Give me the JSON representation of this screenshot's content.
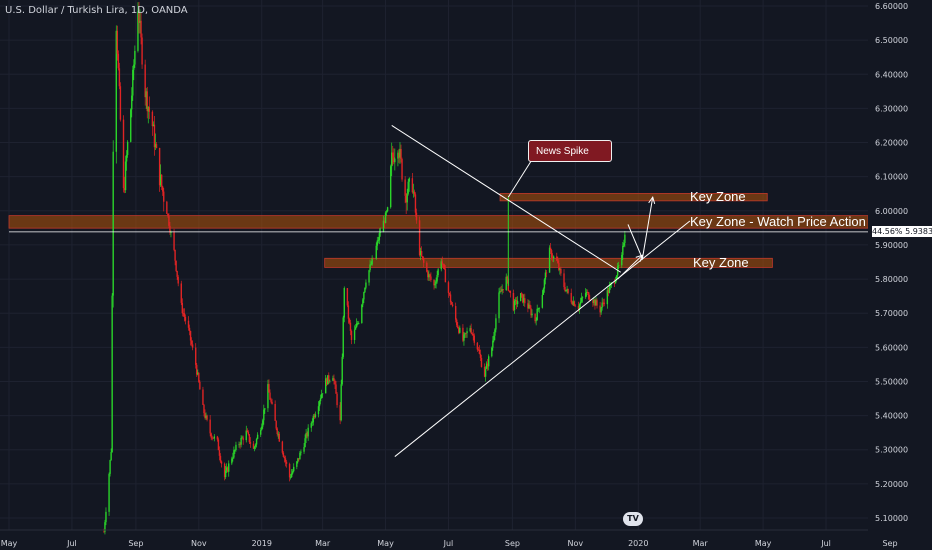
{
  "symbol_title": "U.S. Dollar / Turkish Lira, 1D, OANDA",
  "price_tag": {
    "left": "44.56%",
    "right": "5.93830"
  },
  "annotations": {
    "news_spike": "News Spike",
    "key_zone_upper": "Key Zone",
    "key_zone_middle": "Key Zone - Watch Price Action",
    "key_zone_lower": "Key Zone"
  },
  "colors": {
    "background": "#131722",
    "up": "#26a69a",
    "up_bright": "#2ad52a",
    "down": "#e02424",
    "zone": "#b45309",
    "line": "#ffffff"
  },
  "logo_text": "TV",
  "chart_data": {
    "type": "candlestick",
    "title": "U.S. Dollar / Turkish Lira, 1D, OANDA",
    "x_tick_labels": [
      "May",
      "Jul",
      "Sep",
      "Nov",
      "2019",
      "Mar",
      "May",
      "Jul",
      "Sep",
      "Nov",
      "2020",
      "Mar",
      "May",
      "Jul",
      "Sep"
    ],
    "y_tick_labels": [
      "6.60000",
      "6.50000",
      "6.40000",
      "6.30000",
      "6.20000",
      "6.10000",
      "6.00000",
      "5.90000",
      "5.80000",
      "5.70000",
      "5.60000",
      "5.50000",
      "5.40000",
      "5.30000",
      "5.20000",
      "5.10000"
    ],
    "ylim": [
      5.08,
      6.62
    ],
    "x_range": [
      "2018-05-01",
      "2020-09-15"
    ],
    "current_price": 5.9383,
    "price_path": [
      [
        "2018-08-01",
        5.06
      ],
      [
        "2018-08-08",
        5.3
      ],
      [
        "2018-08-10",
        6.2
      ],
      [
        "2018-08-13",
        6.55
      ],
      [
        "2018-08-20",
        6.05
      ],
      [
        "2018-08-27",
        6.3
      ],
      [
        "2018-09-03",
        6.6
      ],
      [
        "2018-09-10",
        6.35
      ],
      [
        "2018-09-17",
        6.25
      ],
      [
        "2018-09-24",
        6.1
      ],
      [
        "2018-10-01",
        6.0
      ],
      [
        "2018-10-08",
        5.88
      ],
      [
        "2018-10-15",
        5.72
      ],
      [
        "2018-10-22",
        5.65
      ],
      [
        "2018-10-29",
        5.55
      ],
      [
        "2018-11-05",
        5.42
      ],
      [
        "2018-11-12",
        5.35
      ],
      [
        "2018-11-19",
        5.32
      ],
      [
        "2018-11-26",
        5.22
      ],
      [
        "2018-12-03",
        5.28
      ],
      [
        "2018-12-10",
        5.32
      ],
      [
        "2018-12-17",
        5.35
      ],
      [
        "2018-12-24",
        5.3
      ],
      [
        "2019-01-01",
        5.38
      ],
      [
        "2019-01-07",
        5.48
      ],
      [
        "2019-01-14",
        5.38
      ],
      [
        "2019-01-21",
        5.3
      ],
      [
        "2019-01-28",
        5.22
      ],
      [
        "2019-02-04",
        5.26
      ],
      [
        "2019-02-11",
        5.32
      ],
      [
        "2019-02-18",
        5.38
      ],
      [
        "2019-02-25",
        5.44
      ],
      [
        "2019-03-04",
        5.5
      ],
      [
        "2019-03-11",
        5.52
      ],
      [
        "2019-03-18",
        5.38
      ],
      [
        "2019-03-22",
        5.78
      ],
      [
        "2019-03-29",
        5.62
      ],
      [
        "2019-04-05",
        5.68
      ],
      [
        "2019-04-12",
        5.8
      ],
      [
        "2019-04-19",
        5.86
      ],
      [
        "2019-04-26",
        5.94
      ],
      [
        "2019-05-03",
        6.0
      ],
      [
        "2019-05-07",
        6.15
      ],
      [
        "2019-05-13",
        6.2
      ],
      [
        "2019-05-20",
        6.05
      ],
      [
        "2019-05-27",
        6.08
      ],
      [
        "2019-06-03",
        5.88
      ],
      [
        "2019-06-10",
        5.82
      ],
      [
        "2019-06-17",
        5.78
      ],
      [
        "2019-06-24",
        5.86
      ],
      [
        "2019-07-01",
        5.76
      ],
      [
        "2019-07-08",
        5.68
      ],
      [
        "2019-07-15",
        5.62
      ],
      [
        "2019-07-22",
        5.66
      ],
      [
        "2019-07-29",
        5.6
      ],
      [
        "2019-08-05",
        5.52
      ],
      [
        "2019-08-12",
        5.6
      ],
      [
        "2019-08-19",
        5.75
      ],
      [
        "2019-08-26",
        5.8
      ],
      [
        "2019-09-02",
        5.72
      ],
      [
        "2019-09-09",
        5.75
      ],
      [
        "2019-09-16",
        5.72
      ],
      [
        "2019-09-23",
        5.68
      ],
      [
        "2019-09-30",
        5.76
      ],
      [
        "2019-10-07",
        5.88
      ],
      [
        "2019-10-14",
        5.85
      ],
      [
        "2019-10-21",
        5.78
      ],
      [
        "2019-10-28",
        5.74
      ],
      [
        "2019-11-04",
        5.72
      ],
      [
        "2019-11-11",
        5.76
      ],
      [
        "2019-11-18",
        5.74
      ],
      [
        "2019-11-25",
        5.71
      ],
      [
        "2019-12-02",
        5.76
      ],
      [
        "2019-12-09",
        5.8
      ],
      [
        "2019-12-16",
        5.86
      ],
      [
        "2019-12-19",
        5.94
      ]
    ],
    "lines": [
      {
        "name": "descending-trendline",
        "from": [
          "2019-05-07",
          6.25
        ],
        "to": [
          "2019-12-15",
          5.82
        ]
      },
      {
        "name": "ascending-trendline",
        "from": [
          "2019-05-10",
          5.28
        ],
        "to": [
          "2020-02-20",
          5.97
        ]
      },
      {
        "name": "current-price-line",
        "from": [
          "2018-05-01",
          5.9383
        ],
        "to": [
          "2020-09-15",
          5.9383
        ]
      },
      {
        "name": "news-spike-pointer",
        "from": [
          "2019-08-28",
          6.04
        ],
        "to": [
          "2019-09-20",
          6.15
        ]
      }
    ],
    "zones": [
      {
        "name": "key-zone-upper",
        "x": [
          "2019-08-20",
          "2020-05-05"
        ],
        "y": [
          6.035,
          6.045
        ]
      },
      {
        "name": "key-zone-middle",
        "x": [
          "2018-05-01",
          "2020-09-15"
        ],
        "y": [
          5.955,
          5.98
        ]
      },
      {
        "name": "key-zone-lower",
        "x": [
          "2019-03-03",
          "2020-05-10"
        ],
        "y": [
          5.84,
          5.855
        ]
      }
    ],
    "arrows": [
      {
        "name": "projection-arrow-up",
        "points": [
          [
            "2019-12-22",
            5.96
          ],
          [
            "2020-01-05",
            5.86
          ],
          [
            "2020-01-15",
            6.04
          ]
        ]
      },
      {
        "name": "projection-arrow-down",
        "points": [
          [
            "2019-12-12",
            5.8
          ],
          [
            "2020-01-05",
            5.87
          ]
        ]
      }
    ]
  }
}
